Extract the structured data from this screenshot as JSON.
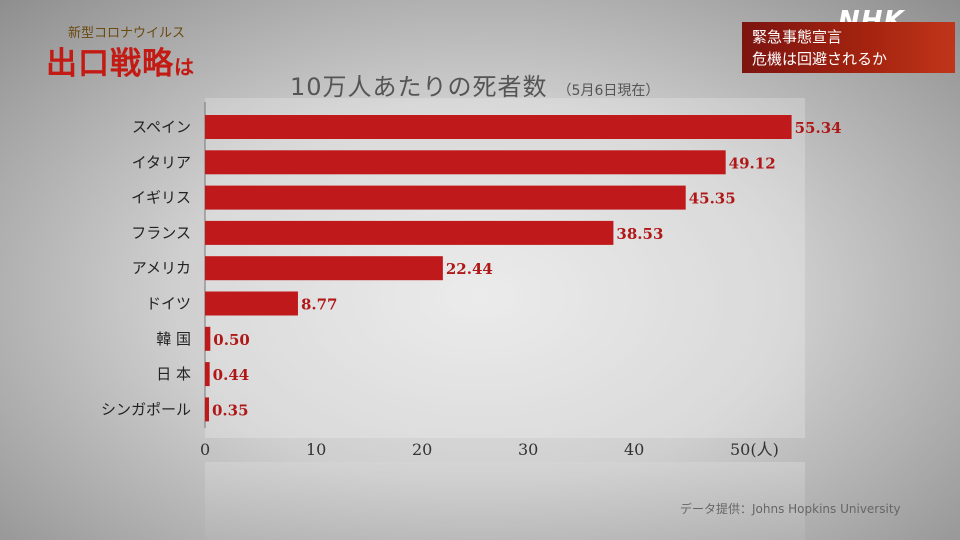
{
  "broadcast": {
    "logo": "NHK",
    "corner_title_top": "新型コロナウイルス",
    "corner_title_main": "出口戦略",
    "corner_title_suffix": "は",
    "news_line1": "緊急事態宣言",
    "news_line2": "危機は回避されるか"
  },
  "chart_data": {
    "type": "bar",
    "orientation": "horizontal",
    "title": "10万人あたりの死者数",
    "subtitle": "（5月6日現在）",
    "categories": [
      "スペイン",
      "イタリア",
      "イギリス",
      "フランス",
      "アメリカ",
      "ドイツ",
      "韓 国",
      "日 本",
      "シンガポール"
    ],
    "values": [
      55.34,
      49.12,
      45.35,
      38.53,
      22.44,
      8.77,
      0.5,
      0.44,
      0.35
    ],
    "value_labels": [
      "55.34",
      "49.12",
      "45.35",
      "38.53",
      "22.44",
      "8.77",
      "0.50",
      "0.44",
      "0.35"
    ],
    "xticks": [
      "0",
      "10",
      "20",
      "30",
      "40",
      "50(人)"
    ],
    "xlim": [
      0,
      56
    ],
    "bar_color": "#c0191b",
    "label_color": "#b01818",
    "source": "データ提供：Johns Hopkins University"
  }
}
